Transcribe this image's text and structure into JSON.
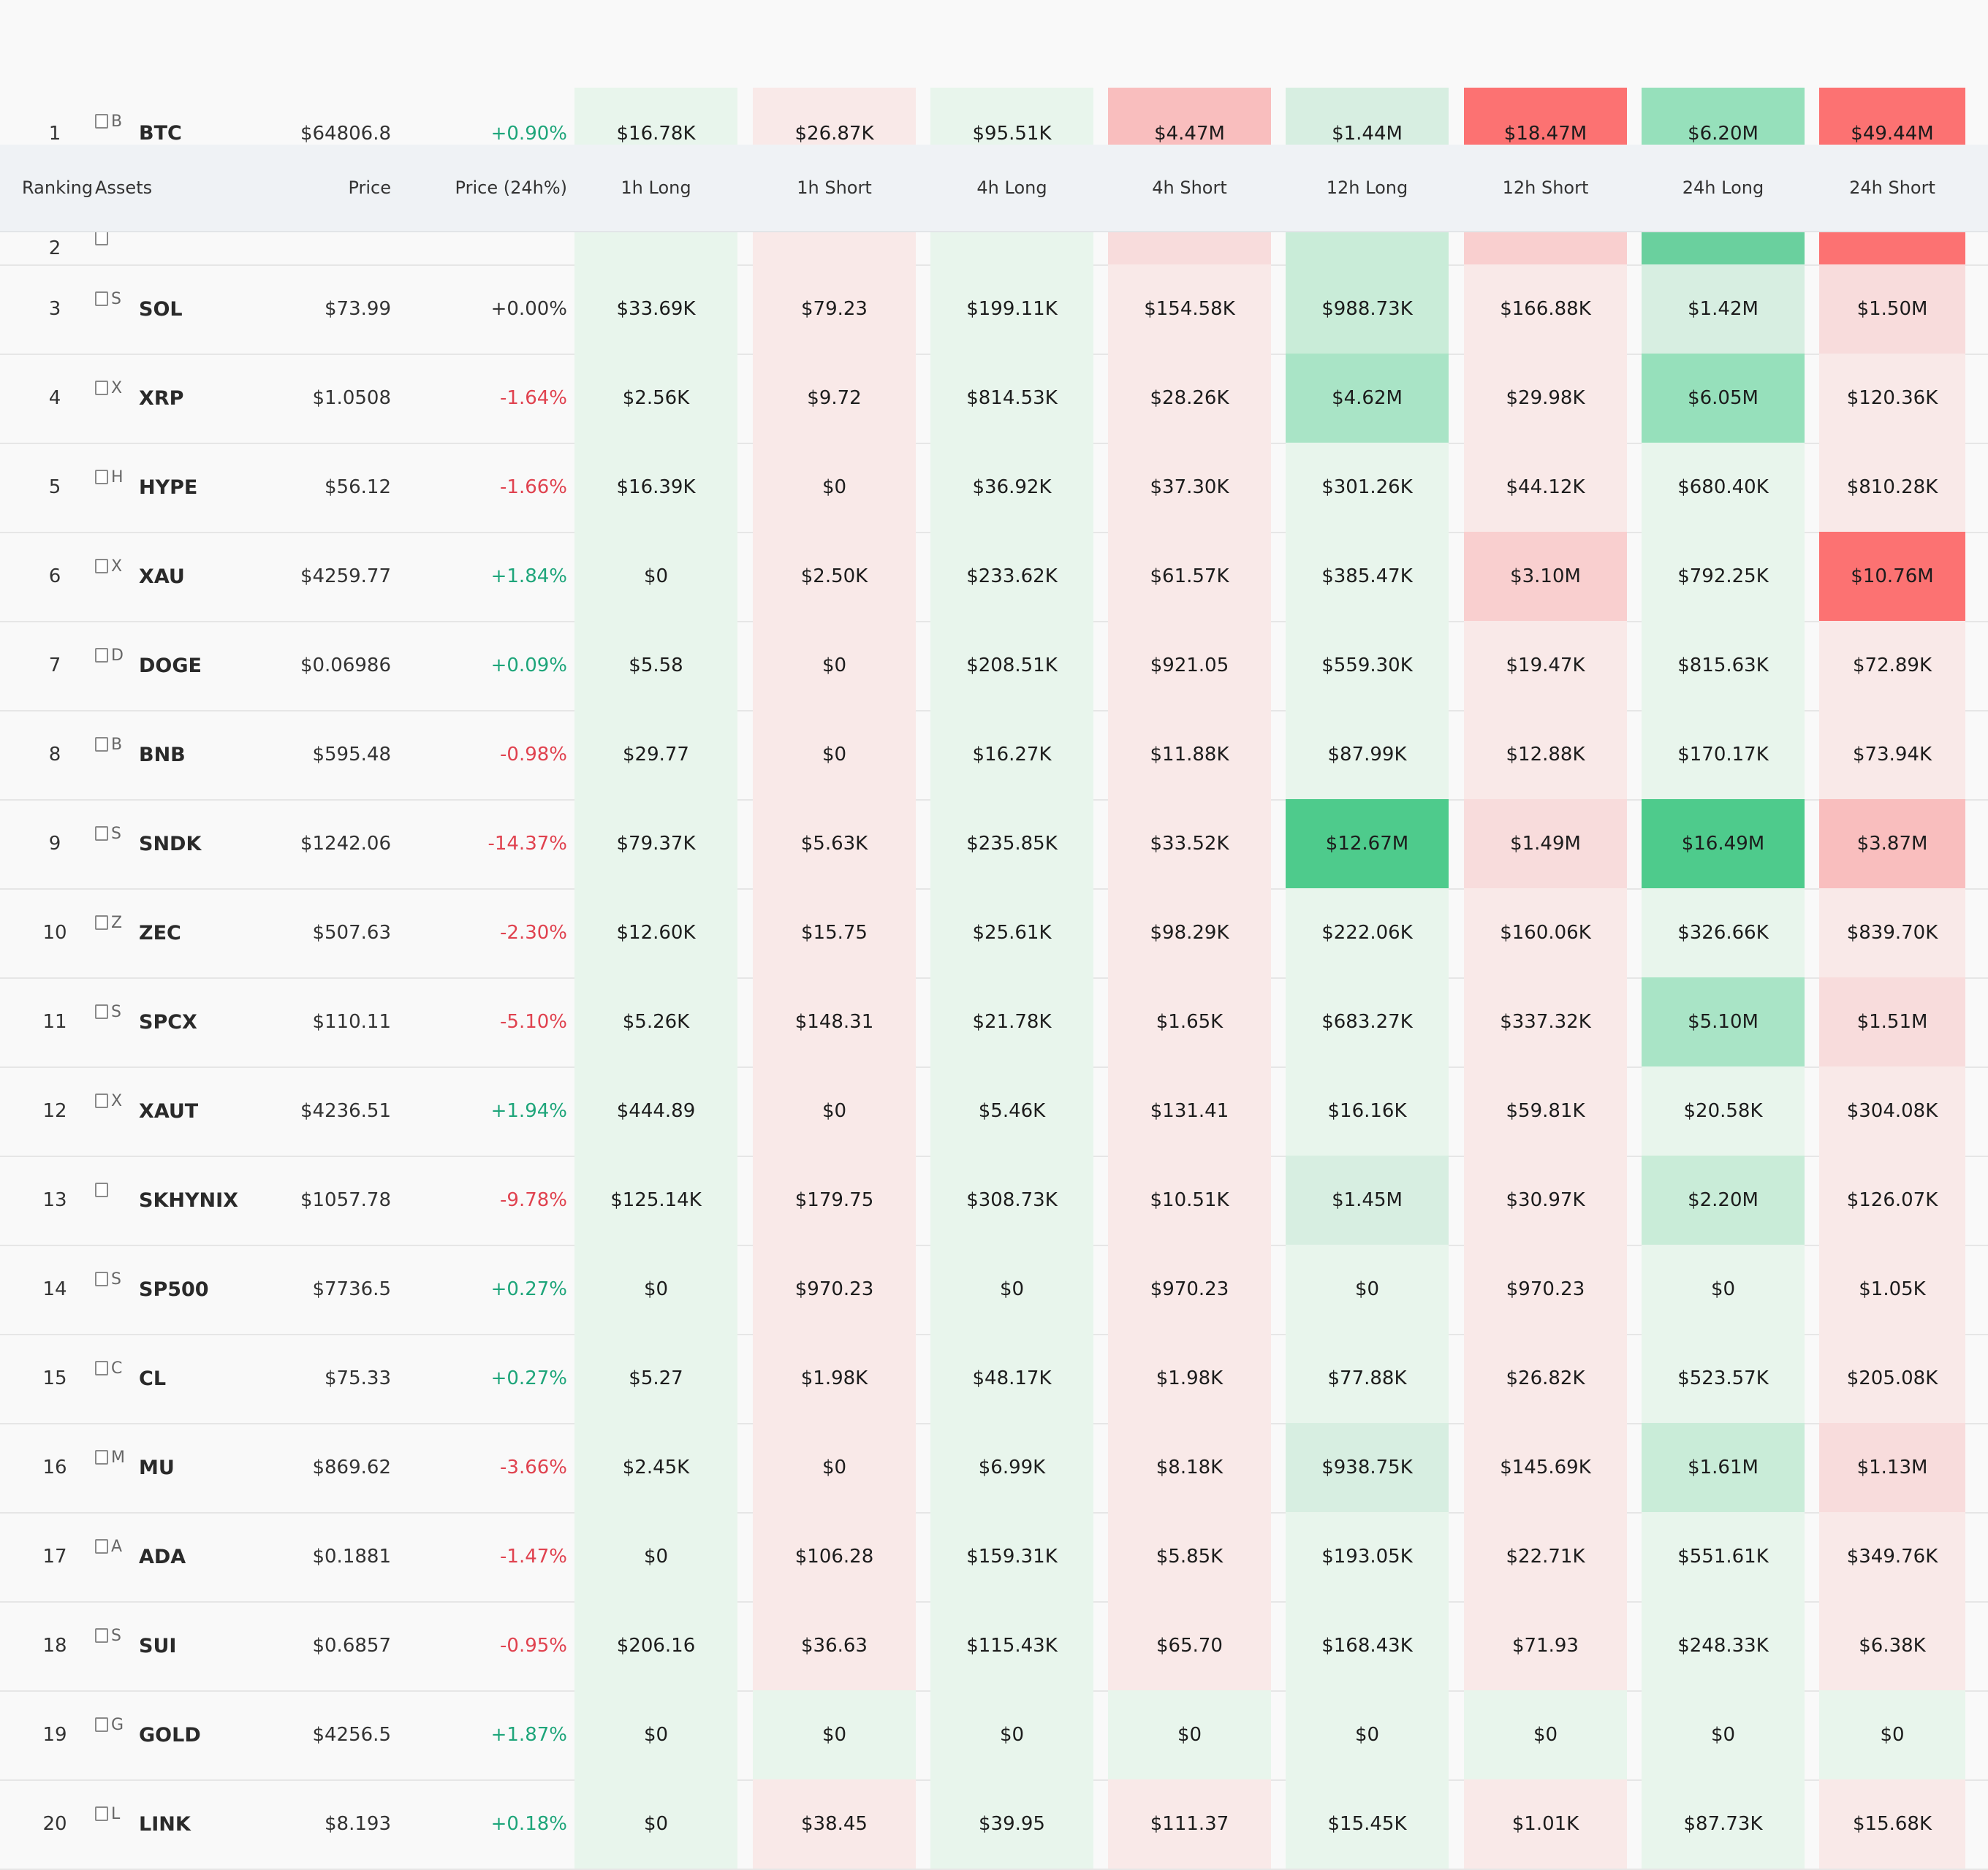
{
  "colors": {
    "long_scale": [
      "#e8f5ec",
      "#d7eee1",
      "#c9ecd8",
      "#a9e4c6",
      "#96e0bb",
      "#6ad09e",
      "#4ecb8c"
    ],
    "short_scale": [
      "#f9e9e8",
      "#f8dcdc",
      "#f9cfcf",
      "#f9bebe",
      "#fca0a0",
      "#fc7272"
    ],
    "positive_text": "#1ea57a",
    "negative_text": "#e0424f"
  },
  "header": {
    "ranking": "Ranking",
    "assets": "Assets",
    "price": "Price",
    "price_change": "Price (24h%)",
    "columns": [
      "1h Long",
      "1h Short",
      "4h Long",
      "4h Short",
      "12h Long",
      "12h Short",
      "24h Long",
      "24h Short"
    ]
  },
  "rows": [
    {
      "rank": "1",
      "icon": "B",
      "symbol": "BTC",
      "price": "$64806.8",
      "change": "+0.90%",
      "dir": "up",
      "cells": [
        "$16.78K",
        "$26.87K",
        "$95.51K",
        "$4.47M",
        "$1.44M",
        "$18.47M",
        "$6.20M",
        "$49.44M"
      ],
      "shades": [
        0,
        0,
        0,
        3,
        1,
        5,
        4,
        5
      ]
    },
    {
      "rank": "2",
      "icon": "",
      "symbol": "",
      "price": "",
      "change": "",
      "dir": "flat",
      "cells": [
        "",
        "",
        "",
        "",
        "",
        "",
        "",
        ""
      ],
      "shades": [
        0,
        0,
        0,
        1,
        2,
        2,
        5,
        5
      ]
    },
    {
      "rank": "3",
      "icon": "S",
      "symbol": "SOL",
      "price": "$73.99",
      "change": "+0.00%",
      "dir": "flat",
      "cells": [
        "$33.69K",
        "$79.23",
        "$199.11K",
        "$154.58K",
        "$988.73K",
        "$166.88K",
        "$1.42M",
        "$1.50M"
      ],
      "shades": [
        0,
        0,
        0,
        0,
        2,
        0,
        1,
        1
      ]
    },
    {
      "rank": "4",
      "icon": "X",
      "symbol": "XRP",
      "price": "$1.0508",
      "change": "-1.64%",
      "dir": "dn",
      "cells": [
        "$2.56K",
        "$9.72",
        "$814.53K",
        "$28.26K",
        "$4.62M",
        "$29.98K",
        "$6.05M",
        "$120.36K"
      ],
      "shades": [
        0,
        0,
        0,
        0,
        3,
        0,
        4,
        0
      ]
    },
    {
      "rank": "5",
      "icon": "H",
      "symbol": "HYPE",
      "price": "$56.12",
      "change": "-1.66%",
      "dir": "dn",
      "cells": [
        "$16.39K",
        "$0",
        "$36.92K",
        "$37.30K",
        "$301.26K",
        "$44.12K",
        "$680.40K",
        "$810.28K"
      ],
      "shades": [
        0,
        0,
        0,
        0,
        0,
        0,
        0,
        0
      ]
    },
    {
      "rank": "6",
      "icon": "X",
      "symbol": "XAU",
      "price": "$4259.77",
      "change": "+1.84%",
      "dir": "up",
      "cells": [
        "$0",
        "$2.50K",
        "$233.62K",
        "$61.57K",
        "$385.47K",
        "$3.10M",
        "$792.25K",
        "$10.76M"
      ],
      "shades": [
        0,
        0,
        0,
        0,
        0,
        2,
        0,
        5
      ]
    },
    {
      "rank": "7",
      "icon": "D",
      "symbol": "DOGE",
      "price": "$0.06986",
      "change": "+0.09%",
      "dir": "up",
      "cells": [
        "$5.58",
        "$0",
        "$208.51K",
        "$921.05",
        "$559.30K",
        "$19.47K",
        "$815.63K",
        "$72.89K"
      ],
      "shades": [
        0,
        0,
        0,
        0,
        0,
        0,
        0,
        0
      ]
    },
    {
      "rank": "8",
      "icon": "B",
      "symbol": "BNB",
      "price": "$595.48",
      "change": "-0.98%",
      "dir": "dn",
      "cells": [
        "$29.77",
        "$0",
        "$16.27K",
        "$11.88K",
        "$87.99K",
        "$12.88K",
        "$170.17K",
        "$73.94K"
      ],
      "shades": [
        0,
        0,
        0,
        0,
        0,
        0,
        0,
        0
      ]
    },
    {
      "rank": "9",
      "icon": "S",
      "symbol": "SNDK",
      "price": "$1242.06",
      "change": "-14.37%",
      "dir": "dn",
      "cells": [
        "$79.37K",
        "$5.63K",
        "$235.85K",
        "$33.52K",
        "$12.67M",
        "$1.49M",
        "$16.49M",
        "$3.87M"
      ],
      "shades": [
        0,
        0,
        0,
        0,
        6,
        1,
        6,
        3
      ]
    },
    {
      "rank": "10",
      "icon": "Z",
      "symbol": "ZEC",
      "price": "$507.63",
      "change": "-2.30%",
      "dir": "dn",
      "cells": [
        "$12.60K",
        "$15.75",
        "$25.61K",
        "$98.29K",
        "$222.06K",
        "$160.06K",
        "$326.66K",
        "$839.70K"
      ],
      "shades": [
        0,
        0,
        0,
        0,
        0,
        0,
        0,
        0
      ]
    },
    {
      "rank": "11",
      "icon": "S",
      "symbol": "SPCX",
      "price": "$110.11",
      "change": "-5.10%",
      "dir": "dn",
      "cells": [
        "$5.26K",
        "$148.31",
        "$21.78K",
        "$1.65K",
        "$683.27K",
        "$337.32K",
        "$5.10M",
        "$1.51M"
      ],
      "shades": [
        0,
        0,
        0,
        0,
        0,
        0,
        3,
        1
      ]
    },
    {
      "rank": "12",
      "icon": "X",
      "symbol": "XAUT",
      "price": "$4236.51",
      "change": "+1.94%",
      "dir": "up",
      "cells": [
        "$444.89",
        "$0",
        "$5.46K",
        "$131.41",
        "$16.16K",
        "$59.81K",
        "$20.58K",
        "$304.08K"
      ],
      "shades": [
        0,
        0,
        0,
        0,
        0,
        0,
        0,
        0
      ]
    },
    {
      "rank": "13",
      "icon": "",
      "symbol": "SKHYNIX",
      "price": "$1057.78",
      "change": "-9.78%",
      "dir": "dn",
      "cells": [
        "$125.14K",
        "$179.75",
        "$308.73K",
        "$10.51K",
        "$1.45M",
        "$30.97K",
        "$2.20M",
        "$126.07K"
      ],
      "shades": [
        0,
        0,
        0,
        0,
        1,
        0,
        2,
        0
      ]
    },
    {
      "rank": "14",
      "icon": "S",
      "symbol": "SP500",
      "price": "$7736.5",
      "change": "+0.27%",
      "dir": "up",
      "cells": [
        "$0",
        "$970.23",
        "$0",
        "$970.23",
        "$0",
        "$970.23",
        "$0",
        "$1.05K"
      ],
      "shades": [
        0,
        0,
        0,
        0,
        0,
        0,
        0,
        0
      ]
    },
    {
      "rank": "15",
      "icon": "C",
      "symbol": "CL",
      "price": "$75.33",
      "change": "+0.27%",
      "dir": "up",
      "cells": [
        "$5.27",
        "$1.98K",
        "$48.17K",
        "$1.98K",
        "$77.88K",
        "$26.82K",
        "$523.57K",
        "$205.08K"
      ],
      "shades": [
        0,
        0,
        0,
        0,
        0,
        0,
        0,
        0
      ]
    },
    {
      "rank": "16",
      "icon": "M",
      "symbol": "MU",
      "price": "$869.62",
      "change": "-3.66%",
      "dir": "dn",
      "cells": [
        "$2.45K",
        "$0",
        "$6.99K",
        "$8.18K",
        "$938.75K",
        "$145.69K",
        "$1.61M",
        "$1.13M"
      ],
      "shades": [
        0,
        0,
        0,
        0,
        1,
        0,
        2,
        1
      ]
    },
    {
      "rank": "17",
      "icon": "A",
      "symbol": "ADA",
      "price": "$0.1881",
      "change": "-1.47%",
      "dir": "dn",
      "cells": [
        "$0",
        "$106.28",
        "$159.31K",
        "$5.85K",
        "$193.05K",
        "$22.71K",
        "$551.61K",
        "$349.76K"
      ],
      "shades": [
        0,
        0,
        0,
        0,
        0,
        0,
        0,
        0
      ]
    },
    {
      "rank": "18",
      "icon": "S",
      "symbol": "SUI",
      "price": "$0.6857",
      "change": "-0.95%",
      "dir": "dn",
      "cells": [
        "$206.16",
        "$36.63",
        "$115.43K",
        "$65.70",
        "$168.43K",
        "$71.93",
        "$248.33K",
        "$6.38K"
      ],
      "shades": [
        0,
        0,
        0,
        0,
        0,
        0,
        0,
        0
      ]
    },
    {
      "rank": "19",
      "icon": "G",
      "symbol": "GOLD",
      "price": "$4256.5",
      "change": "+1.87%",
      "dir": "up",
      "cells": [
        "$0",
        "$0",
        "$0",
        "$0",
        "$0",
        "$0",
        "$0",
        "$0"
      ],
      "shades": [
        0,
        0,
        0,
        0,
        0,
        0,
        0,
        0
      ],
      "all_green": true
    },
    {
      "rank": "20",
      "icon": "L",
      "symbol": "LINK",
      "price": "$8.193",
      "change": "+0.18%",
      "dir": "up",
      "cells": [
        "$0",
        "$38.45",
        "$39.95",
        "$111.37",
        "$15.45K",
        "$1.01K",
        "$87.73K",
        "$15.68K"
      ],
      "shades": [
        0,
        0,
        0,
        0,
        0,
        0,
        0,
        0
      ]
    }
  ]
}
